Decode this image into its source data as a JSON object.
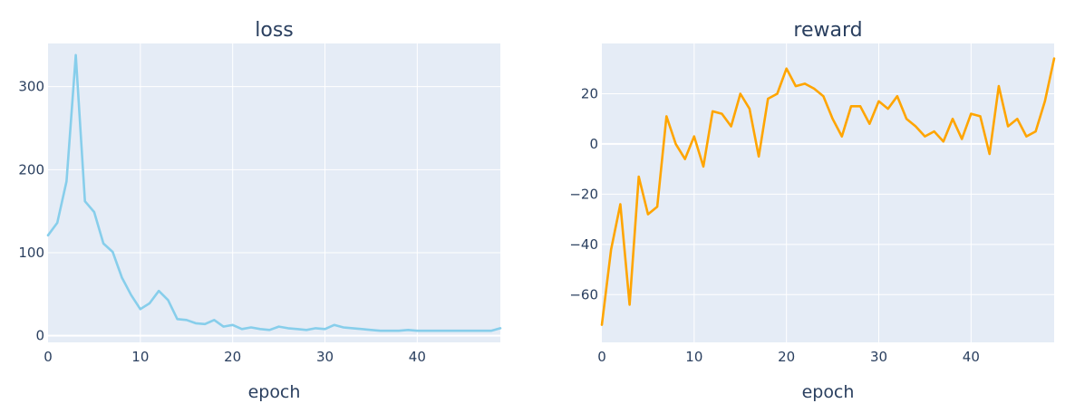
{
  "chart_data": [
    {
      "type": "line",
      "title": "loss",
      "xlabel": "epoch",
      "ylabel": "",
      "xlim": [
        0,
        49
      ],
      "ylim": [
        -8,
        352
      ],
      "xticks": [
        0,
        10,
        20,
        30,
        40
      ],
      "yticks": [
        0,
        100,
        200,
        300
      ],
      "color": "#87ceeb",
      "x": [
        0,
        1,
        2,
        3,
        4,
        5,
        6,
        7,
        8,
        9,
        10,
        11,
        12,
        13,
        14,
        15,
        16,
        17,
        18,
        19,
        20,
        21,
        22,
        23,
        24,
        25,
        26,
        27,
        28,
        29,
        30,
        31,
        32,
        33,
        34,
        35,
        36,
        37,
        38,
        39,
        40,
        41,
        42,
        43,
        44,
        45,
        46,
        47,
        48,
        49
      ],
      "values": [
        121,
        136,
        186,
        338,
        162,
        149,
        111,
        101,
        70,
        49,
        32,
        39,
        54,
        43,
        20,
        19,
        15,
        14,
        19,
        11,
        13,
        8,
        10,
        8,
        7,
        11,
        9,
        8,
        7,
        9,
        8,
        13,
        10,
        9,
        8,
        7,
        6,
        6,
        6,
        7,
        6,
        6,
        6,
        6,
        6,
        6,
        6,
        6,
        6,
        9
      ]
    },
    {
      "type": "line",
      "title": "reward",
      "xlabel": "epoch",
      "ylabel": "",
      "xlim": [
        0,
        49
      ],
      "ylim": [
        -79,
        40
      ],
      "xticks": [
        0,
        10,
        20,
        30,
        40
      ],
      "yticks": [
        -60,
        -40,
        -20,
        0,
        20
      ],
      "color": "#ffa500",
      "x": [
        0,
        1,
        2,
        3,
        4,
        5,
        6,
        7,
        8,
        9,
        10,
        11,
        12,
        13,
        14,
        15,
        16,
        17,
        18,
        19,
        20,
        21,
        22,
        23,
        24,
        25,
        26,
        27,
        28,
        29,
        30,
        31,
        32,
        33,
        34,
        35,
        36,
        37,
        38,
        39,
        40,
        41,
        42,
        43,
        44,
        45,
        46,
        47,
        48,
        49
      ],
      "values": [
        -72,
        -42,
        -24,
        -64,
        -13,
        -28,
        -25,
        11,
        0,
        -6,
        3,
        -9,
        13,
        12,
        7,
        20,
        14,
        -5,
        18,
        20,
        30,
        23,
        24,
        22,
        19,
        10,
        3,
        15,
        15,
        8,
        17,
        14,
        19,
        10,
        7,
        3,
        5,
        1,
        10,
        2,
        12,
        11,
        -4,
        23,
        7,
        10,
        3,
        5,
        17,
        34
      ]
    }
  ]
}
